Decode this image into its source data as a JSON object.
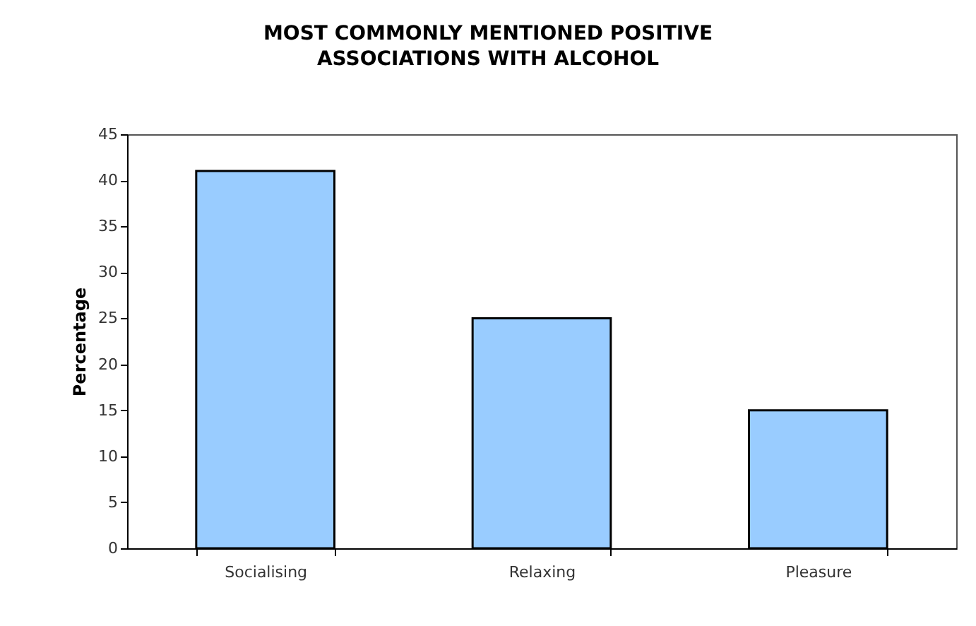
{
  "chart_data": {
    "type": "bar",
    "title": "MOST COMMONLY MENTIONED POSITIVE ASSOCIATIONS WITH ALCOHOL",
    "ylabel": "Percentage",
    "categories": [
      "Socialising",
      "Relaxing",
      "Pleasure"
    ],
    "values": [
      41,
      25,
      15
    ],
    "color": "#99ccff",
    "ylim": [
      0,
      45
    ],
    "yticks": [
      0,
      5,
      10,
      15,
      20,
      25,
      30,
      35,
      40,
      45
    ],
    "grid": false
  }
}
